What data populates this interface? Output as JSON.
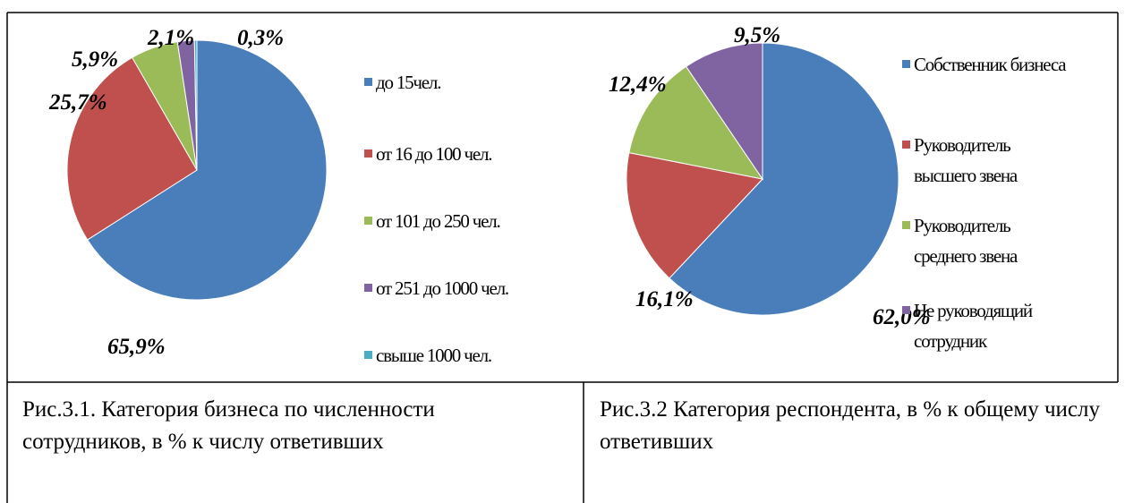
{
  "chart_data": [
    {
      "type": "pie",
      "caption": "Рис.3.1. Категория бизнеса по численности сотрудников, в % к числу ответивших",
      "categories": [
        "до 15чел.",
        "от 16 до 100 чел.",
        "от 101 до 250 чел.",
        "от 251 до 1000 чел.",
        "свыше 1000 чел."
      ],
      "values": [
        65.9,
        25.7,
        5.9,
        2.1,
        0.3
      ],
      "value_labels": [
        "65,9%",
        "25,7%",
        "5,9%",
        "2,1%",
        "0,3%"
      ],
      "colors": [
        "#4a7ebb",
        "#c0504d",
        "#9bbb59",
        "#8064a2",
        "#4bacc6"
      ],
      "legend": "right"
    },
    {
      "type": "pie",
      "caption": "Рис.3.2 Категория респондента, в % к общему числу ответивших",
      "categories": [
        "Собственник бизнеса",
        "Руководитель высшего звена",
        "Руководитель среднего звена",
        "Не руководящий сотрудник"
      ],
      "values": [
        62.0,
        16.1,
        12.4,
        9.5
      ],
      "value_labels": [
        "62,0%",
        "16,1%",
        "12,4%",
        "9,5%"
      ],
      "colors": [
        "#4a7ebb",
        "#c0504d",
        "#9bbb59",
        "#8064a2"
      ],
      "legend": "right"
    }
  ]
}
